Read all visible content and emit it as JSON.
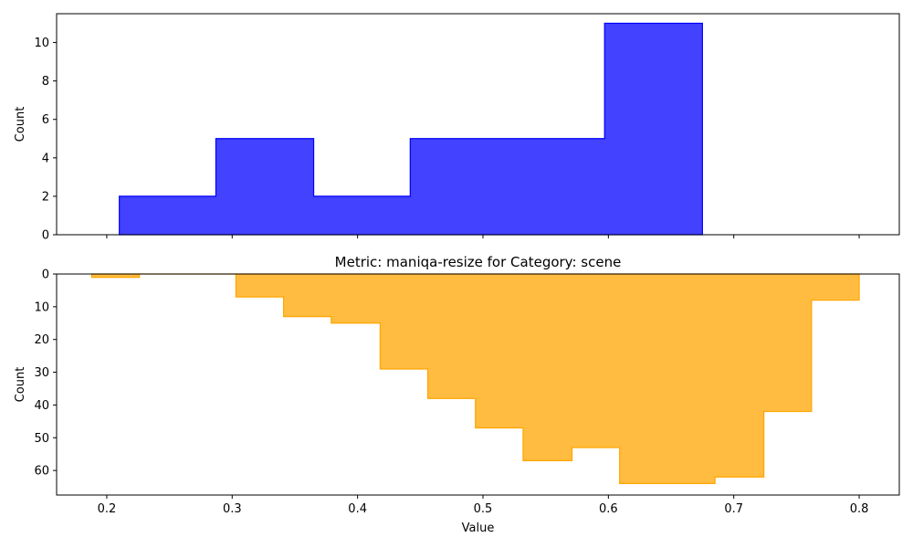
{
  "chart_data": [
    {
      "type": "histogram",
      "panel": "top",
      "title": "",
      "xlabel": "",
      "ylabel": "Count",
      "xlim": [
        0.16,
        0.832
      ],
      "ylim": [
        0,
        11.5
      ],
      "x_ticks": [
        0.2,
        0.3,
        0.4,
        0.5,
        0.6,
        0.7,
        0.8
      ],
      "x_tick_labels_shown": false,
      "y_ticks": [
        0,
        2,
        4,
        6,
        8,
        10
      ],
      "orientation": "upward",
      "color": "#0000ff",
      "bin_edges": [
        0.21,
        0.287,
        0.365,
        0.442,
        0.52,
        0.597,
        0.675
      ],
      "counts": [
        2,
        5,
        2,
        5,
        5,
        11
      ]
    },
    {
      "type": "histogram",
      "panel": "bottom",
      "title": "Metric: maniqa-resize for Category: scene",
      "xlabel": "Value",
      "ylabel": "Count",
      "xlim": [
        0.16,
        0.832
      ],
      "ylim": [
        0,
        67.5
      ],
      "y_inverted": true,
      "x_ticks": [
        0.2,
        0.3,
        0.4,
        0.5,
        0.6,
        0.7,
        0.8
      ],
      "y_ticks": [
        0,
        10,
        20,
        30,
        40,
        50,
        60
      ],
      "orientation": "downward",
      "color": "#ffa500",
      "bin_edges": [
        0.188,
        0.226,
        0.265,
        0.303,
        0.341,
        0.379,
        0.418,
        0.456,
        0.494,
        0.532,
        0.571,
        0.609,
        0.647,
        0.685,
        0.724,
        0.762,
        0.8
      ],
      "counts": [
        1,
        0,
        0,
        7,
        13,
        15,
        29,
        38,
        47,
        57,
        53,
        64,
        64,
        62,
        42,
        8
      ]
    }
  ]
}
